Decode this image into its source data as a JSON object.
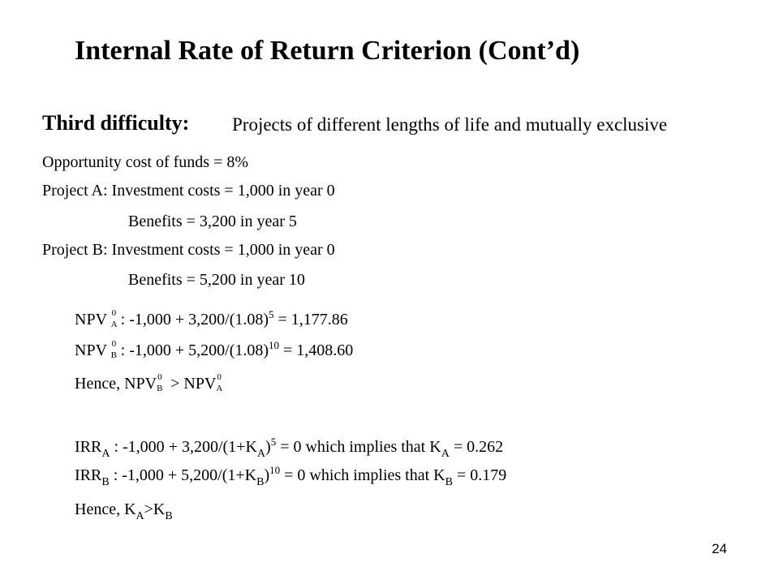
{
  "title": "Internal Rate of Return Criterion (Cont’d)",
  "heading": "Third difficulty:",
  "heading_desc": "Projects of different lengths of life and mutually exclusive",
  "lines": {
    "opportunity": "Opportunity cost of funds = 8%",
    "projA": "Project A: Investment costs = 1,000 in year 0",
    "projA_benefit": "Benefits = 3,200 in year 5",
    "projB": "Project B: Investment costs = 1,000 in year 0",
    "projB_benefit": "Benefits = 5,200 in year 10"
  },
  "npv": {
    "a": {
      "label": "NPV",
      "sup": "0",
      "sub": "A",
      "expr": ": -1,000 + 3,200/(1.08)",
      "exp": "5",
      "result": " = 1,177.86"
    },
    "b": {
      "label": "NPV",
      "sup": "0",
      "sub": "B",
      "expr": ": -1,000 + 5,200/(1.08)",
      "exp": "10",
      "result": " = 1,408.60"
    },
    "hence": {
      "prefix": "Hence, NPV",
      "sub1": "B",
      "sup1": "0",
      "mid": " > NPV",
      "sub2": "A",
      "sup2": "0"
    }
  },
  "irr": {
    "a": {
      "label": "IRR",
      "sub": "A",
      "expr1": " : -1,000 + 3,200/(1+K",
      "sub_k": "A",
      "close": ")",
      "exp": "5",
      "expr2": " = 0  which implies that  K",
      "sub_k2": "A",
      "result": " = 0.262"
    },
    "b": {
      "label": "IRR",
      "sub": "B",
      "expr1": " : -1,000 + 5,200/(1+K",
      "sub_k": "B",
      "close": ")",
      "exp": "10",
      "expr2": " = 0 which implies that  K",
      "sub_k2": "B",
      "result": " = 0.179"
    },
    "hence": {
      "prefix": "Hence, K",
      "sub1": "A",
      "mid": ">K",
      "sub2": "B"
    }
  },
  "page_number": "24"
}
